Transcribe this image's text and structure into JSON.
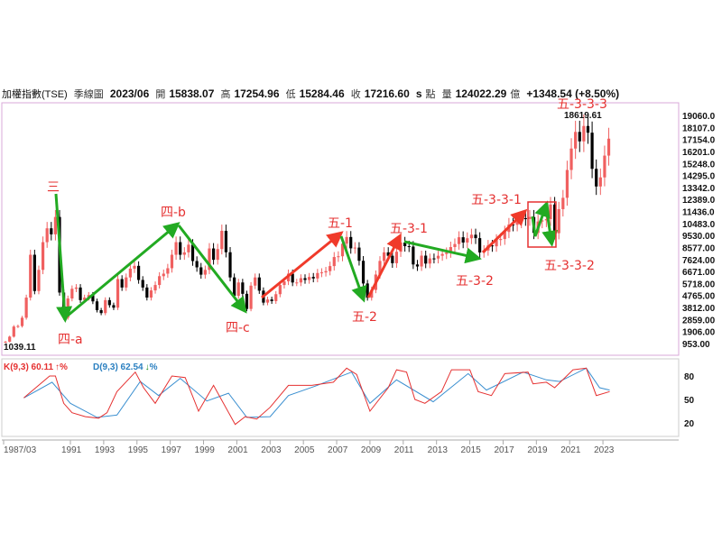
{
  "header": {
    "symbol": "加權指數(TSE)",
    "period": "季線圖",
    "date": "2023/06",
    "open_label": "開",
    "open": "15838.07",
    "high_label": "高",
    "high": "17254.96",
    "low_label": "低",
    "low": "15284.46",
    "close_label": "收",
    "close": "17216.60",
    "s": "s",
    "unit": "點",
    "volume_label": "量",
    "volume": "124022.29",
    "volume_unit": "億",
    "change": "+1348.54 (+8.50%)"
  },
  "chart_data": {
    "type": "candlestick",
    "title": "加權指數(TSE) 季線圖",
    "start": [
      1987,
      1
    ],
    "closes": [
      1100,
      1500,
      2300,
      2340,
      3000,
      4600,
      8000,
      5120,
      6800,
      9000,
      10100,
      9620,
      11000,
      5000,
      3000,
      4530,
      5300,
      5400,
      4400,
      4600,
      4800,
      4300,
      3600,
      3370,
      4400,
      4000,
      3800,
      6070,
      5400,
      6200,
      6900,
      7120,
      6000,
      5400,
      4600,
      5170,
      5600,
      6300,
      6500,
      6930,
      8000,
      9000,
      8000,
      8190,
      8800,
      7500,
      7000,
      6420,
      6800,
      8500,
      7600,
      8450,
      9900,
      8200,
      6200,
      4740,
      5800,
      4900,
      3700,
      5550,
      6200,
      5150,
      4200,
      4450,
      4320,
      4870,
      5600,
      5890,
      6500,
      5800,
      5800,
      6140,
      6000,
      6240,
      6120,
      6550,
      6600,
      6700,
      7100,
      7820,
      7880,
      8880,
      9410,
      8510,
      8570,
      7520,
      5720,
      4590,
      5210,
      6430,
      7510,
      8190,
      7920,
      7330,
      8240,
      8970,
      8680,
      8650,
      7230,
      7070,
      7930,
      7300,
      7710,
      7700,
      7920,
      8060,
      8170,
      8610,
      8850,
      9390,
      8970,
      9310,
      9590,
      9320,
      8180,
      8340,
      8740,
      8670,
      9170,
      9250,
      9810,
      10400,
      10380,
      10640,
      10900,
      10840,
      11000,
      9730,
      10640,
      10730,
      10830,
      11990,
      9710,
      11620,
      12520,
      14730,
      16430,
      17750,
      17000,
      18220,
      17690,
      14820,
      13420,
      14140,
      15870,
      17216.6
    ],
    "first_open": 1039.11,
    "y_ticks": [
      "19060.0",
      "18107.0",
      "17154.0",
      "16201.0",
      "15248.0",
      "14295.0",
      "13342.0",
      "12389.0",
      "11436.0",
      "10483.0",
      "9530.00",
      "8577.00",
      "7624.00",
      "6671.00",
      "5718.00",
      "4765.00",
      "3812.00",
      "2859.00",
      "1906.00",
      "953.00"
    ],
    "ylim": [
      953,
      19060
    ],
    "x_ticks": [
      "1987/03",
      "1991",
      "1993",
      "1995",
      "1997",
      "1999",
      "2001",
      "2003",
      "2005",
      "2007",
      "2009",
      "2011",
      "2013",
      "2015",
      "2017",
      "2019",
      "2021",
      "2023"
    ],
    "low_note": "1039.11",
    "high_note": "18619.61",
    "waves": [
      "三",
      "四-a",
      "四-b",
      "四-c",
      "五-1",
      "五-2",
      "五-3-1",
      "五-3-2",
      "五-3-3-1",
      "五-3-3-2",
      "五-3-3-3"
    ],
    "kd": {
      "k_label": "K(9,3) 60.11",
      "k_arrow": "↑",
      "k_pct": "%",
      "d_label": "D(9,3) 62.54",
      "d_arrow": "↓",
      "d_pct": "%",
      "y_ticks": [
        "80",
        "50",
        "20"
      ],
      "k": [
        [
          1988.2,
          52
        ],
        [
          1989.75,
          80
        ],
        [
          1990.1,
          80
        ],
        [
          1990.6,
          45
        ],
        [
          1991.1,
          33
        ],
        [
          1991.9,
          28
        ],
        [
          1992.7,
          26
        ],
        [
          1993.2,
          33
        ],
        [
          1993.8,
          60
        ],
        [
          1994.9,
          85
        ],
        [
          1995.4,
          65
        ],
        [
          1996.1,
          45
        ],
        [
          1997.1,
          80
        ],
        [
          1997.9,
          78
        ],
        [
          1998.7,
          35
        ],
        [
          1999.6,
          68
        ],
        [
          2000.9,
          18
        ],
        [
          2001.5,
          28
        ],
        [
          2002.2,
          25
        ],
        [
          2003.0,
          40
        ],
        [
          2004.1,
          68
        ],
        [
          2005.5,
          68
        ],
        [
          2006.8,
          72
        ],
        [
          2007.6,
          90
        ],
        [
          2008.2,
          82
        ],
        [
          2009.0,
          35
        ],
        [
          2010.1,
          65
        ],
        [
          2010.6,
          88
        ],
        [
          2011.2,
          85
        ],
        [
          2011.7,
          50
        ],
        [
          2012.3,
          45
        ],
        [
          2013.3,
          60
        ],
        [
          2013.9,
          88
        ],
        [
          2015.0,
          88
        ],
        [
          2015.5,
          60
        ],
        [
          2016.3,
          55
        ],
        [
          2017.1,
          83
        ],
        [
          2018.5,
          85
        ],
        [
          2018.8,
          70
        ],
        [
          2019.6,
          72
        ],
        [
          2020.1,
          65
        ],
        [
          2021.2,
          88
        ],
        [
          2022.0,
          90
        ],
        [
          2022.6,
          55
        ],
        [
          2023.4,
          60
        ]
      ],
      "d": [
        [
          1988.2,
          52
        ],
        [
          1989.9,
          72
        ],
        [
          1991.0,
          45
        ],
        [
          1992.6,
          27
        ],
        [
          1993.8,
          30
        ],
        [
          1995.2,
          73
        ],
        [
          1996.3,
          55
        ],
        [
          1997.6,
          77
        ],
        [
          1999.2,
          48
        ],
        [
          2000.5,
          58
        ],
        [
          2001.6,
          27
        ],
        [
          2003.0,
          28
        ],
        [
          2004.1,
          55
        ],
        [
          2005.7,
          67
        ],
        [
          2007.9,
          85
        ],
        [
          2009.0,
          45
        ],
        [
          2010.6,
          75
        ],
        [
          2012.8,
          47
        ],
        [
          2014.9,
          83
        ],
        [
          2016.0,
          62
        ],
        [
          2018.2,
          85
        ],
        [
          2019.6,
          75
        ],
        [
          2020.4,
          73
        ],
        [
          2022.0,
          90
        ],
        [
          2022.8,
          65
        ],
        [
          2023.4,
          62
        ]
      ]
    },
    "colors": {
      "up": "#f06060",
      "down": "#000000",
      "k": "#e53030",
      "d": "#3a8fd0",
      "arrow_up": "#f03a2a",
      "arrow_down": "#22aa22",
      "frame": "#d8a8d8"
    }
  }
}
